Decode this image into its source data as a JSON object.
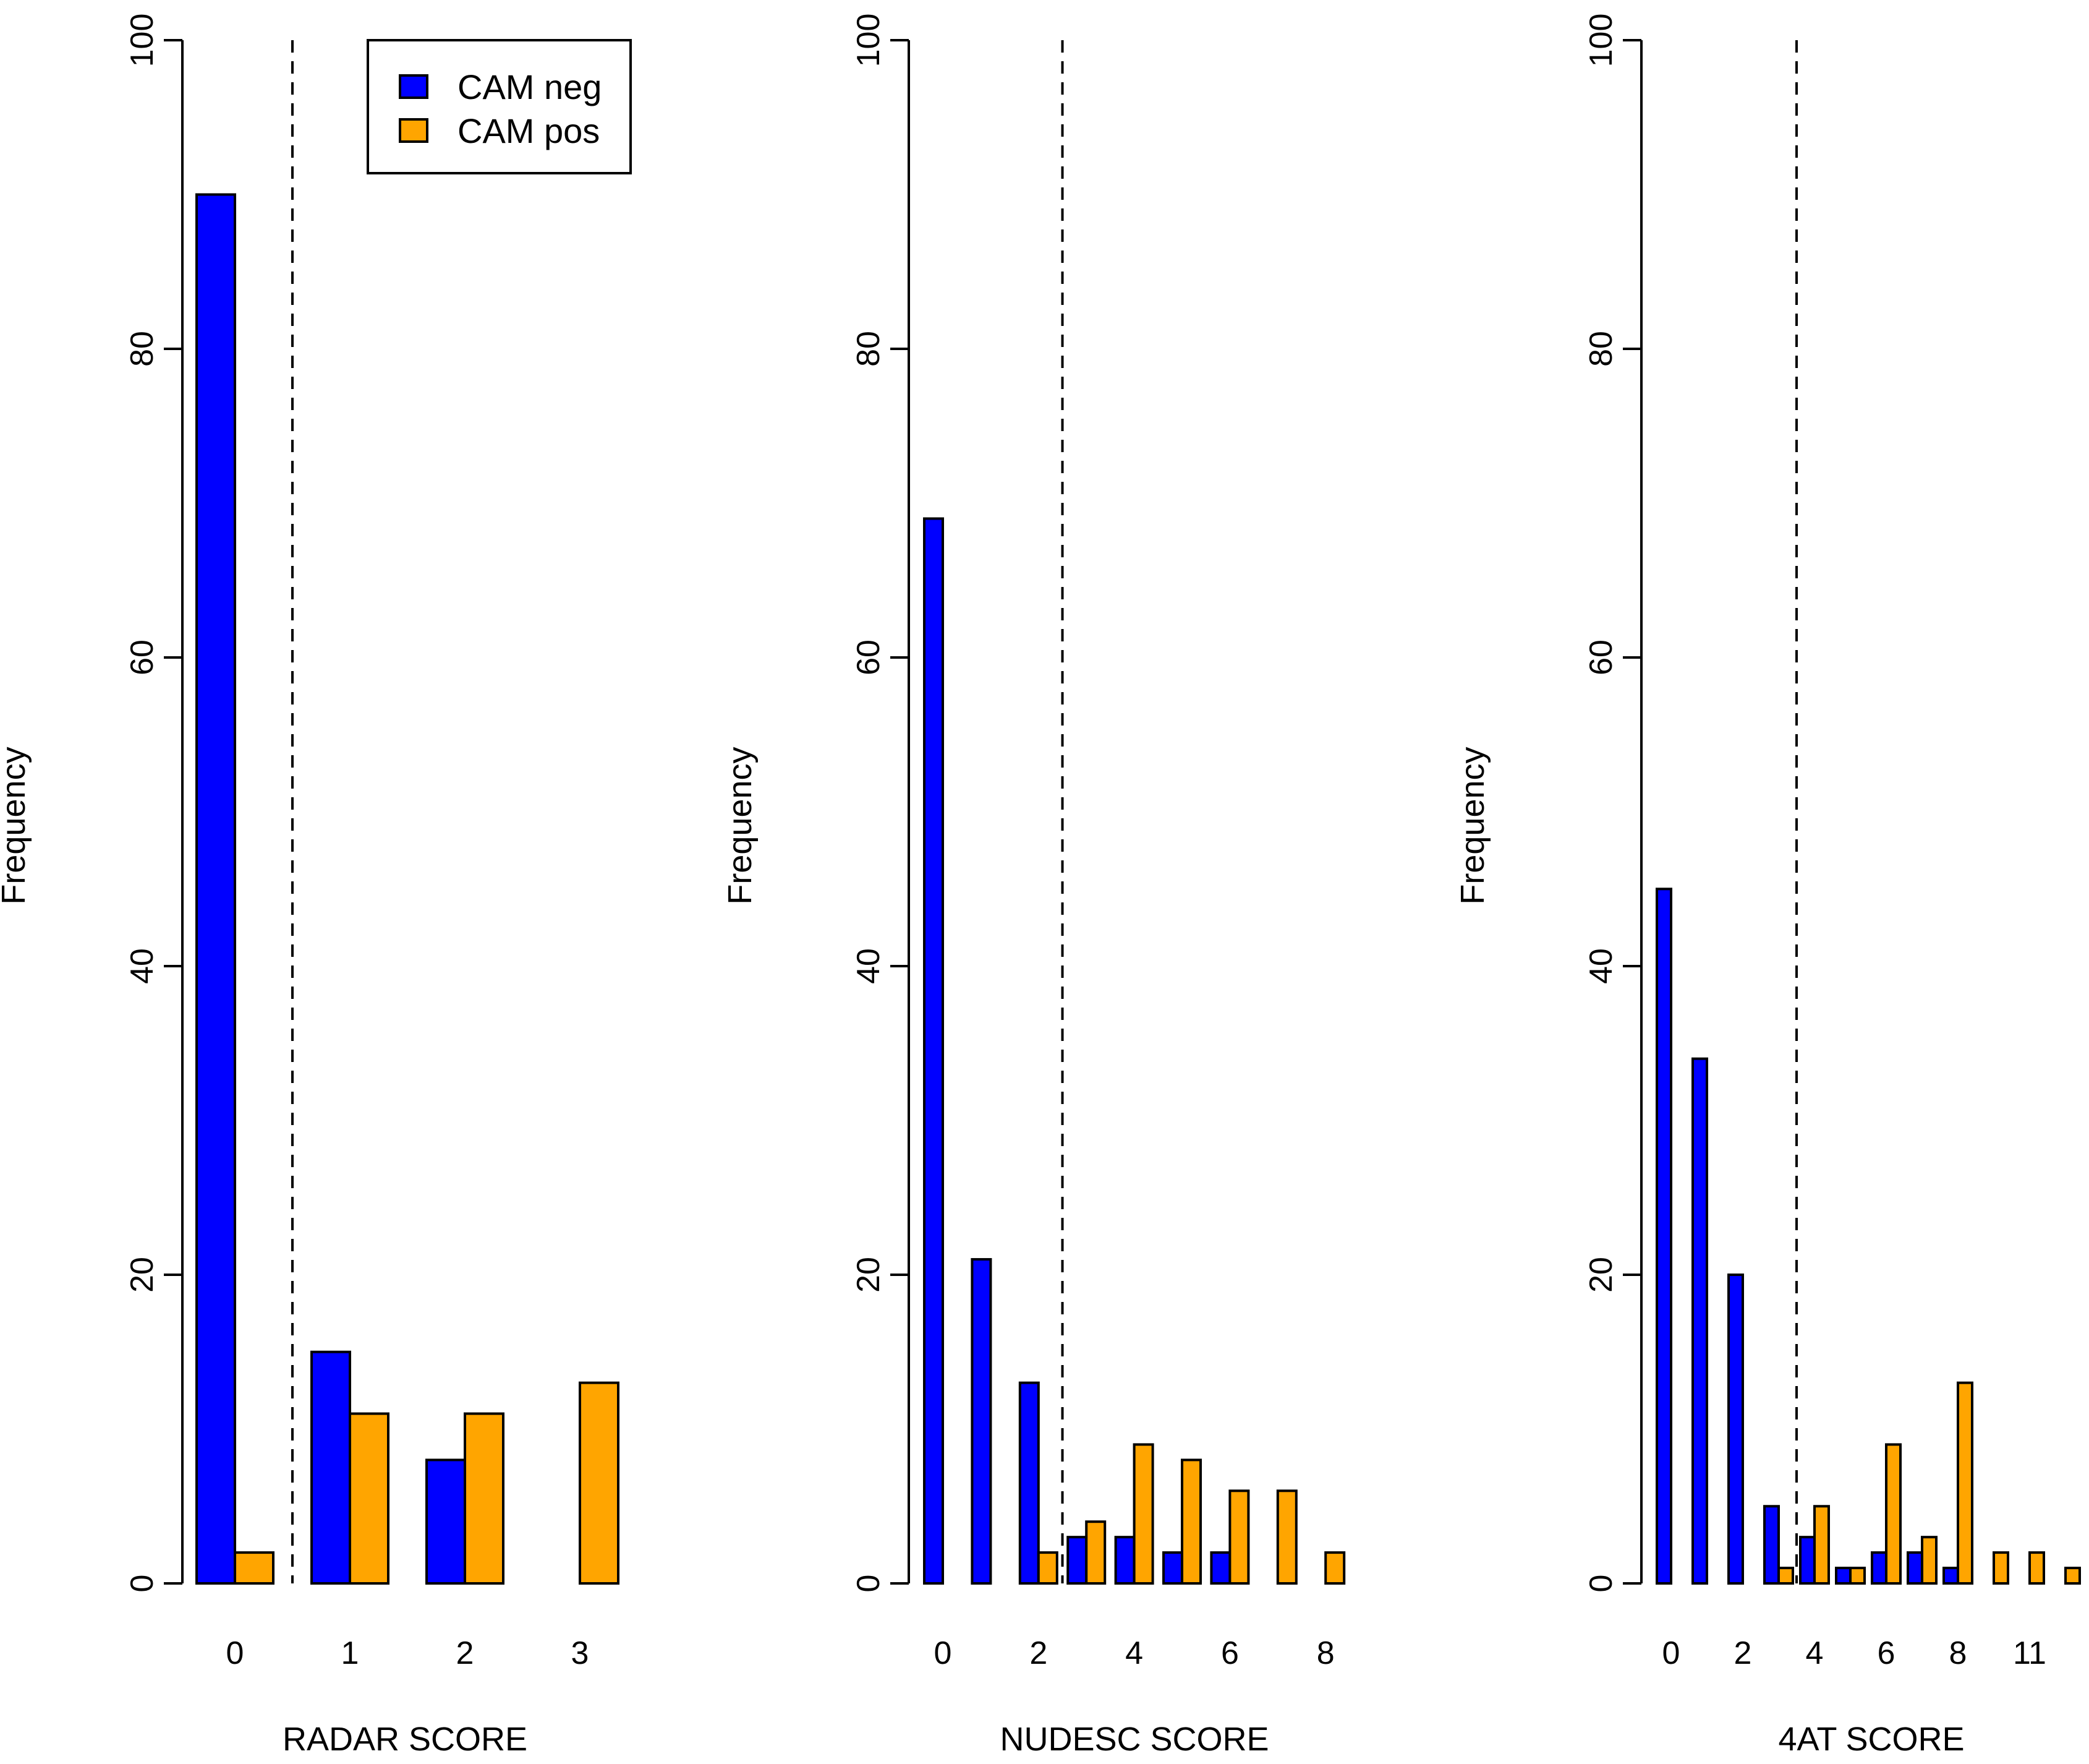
{
  "chart_data": [
    {
      "type": "bar",
      "xlabel": "RADAR SCORE",
      "ylabel": "Frequency",
      "ylim": [
        0,
        100
      ],
      "yticks": [
        0,
        20,
        40,
        60,
        80,
        100
      ],
      "categories": [
        "0",
        "1",
        "2",
        "3"
      ],
      "tick_labels": [
        "0",
        "1",
        "2",
        "3"
      ],
      "cutoff_after_category": "0",
      "series": [
        {
          "name": "CAM neg",
          "color": "#0000FF",
          "values": [
            90,
            15,
            8,
            0
          ]
        },
        {
          "name": "CAM pos",
          "color": "#FFA500",
          "values": [
            2,
            11,
            11,
            13
          ]
        }
      ]
    },
    {
      "type": "bar",
      "xlabel": "NUDESC SCORE",
      "ylabel": "Frequency",
      "ylim": [
        0,
        100
      ],
      "yticks": [
        0,
        20,
        40,
        60,
        80,
        100
      ],
      "categories": [
        "0",
        "1",
        "2",
        "3",
        "4",
        "5",
        "6",
        "7",
        "8"
      ],
      "tick_labels": [
        "0",
        "",
        "2",
        "",
        "4",
        "",
        "6",
        "",
        "8"
      ],
      "cutoff_after_category": "2",
      "series": [
        {
          "name": "CAM neg",
          "color": "#0000FF",
          "values": [
            69,
            21,
            13,
            3,
            3,
            2,
            2,
            0,
            0
          ]
        },
        {
          "name": "CAM pos",
          "color": "#FFA500",
          "values": [
            0,
            0,
            2,
            4,
            9,
            8,
            6,
            6,
            2
          ]
        }
      ]
    },
    {
      "type": "bar",
      "xlabel": "4AT SCORE",
      "ylabel": "Frequency",
      "ylim": [
        0,
        100
      ],
      "yticks": [
        0,
        20,
        40,
        60,
        80,
        100
      ],
      "categories": [
        "0",
        "1",
        "2",
        "3",
        "4",
        "5",
        "6",
        "7",
        "8",
        "9",
        "11",
        "12"
      ],
      "tick_labels": [
        "0",
        "",
        "2",
        "",
        "4",
        "",
        "6",
        "",
        "8",
        "",
        "11",
        ""
      ],
      "cutoff_after_category": "3",
      "series": [
        {
          "name": "CAM neg",
          "color": "#0000FF",
          "values": [
            45,
            34,
            20,
            5,
            3,
            1,
            2,
            2,
            1,
            0,
            0,
            0
          ]
        },
        {
          "name": "CAM pos",
          "color": "#FFA500",
          "values": [
            0,
            0,
            0,
            1,
            5,
            1,
            9,
            3,
            13,
            2,
            2,
            1
          ]
        }
      ]
    }
  ],
  "legend": {
    "items": [
      {
        "label": "CAM neg",
        "color": "#0000FF"
      },
      {
        "label": "CAM pos",
        "color": "#FFA500"
      }
    ]
  }
}
